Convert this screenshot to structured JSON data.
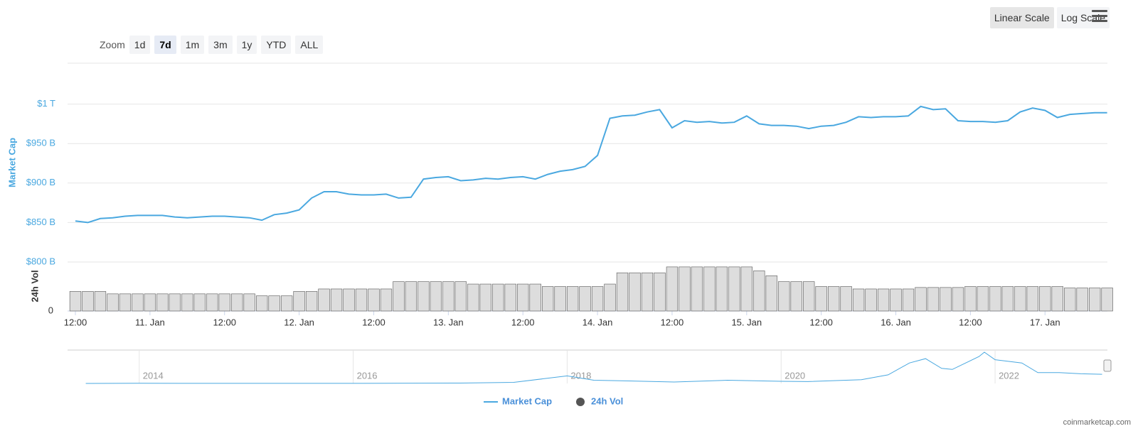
{
  "zoom": {
    "label": "Zoom",
    "buttons": [
      "1d",
      "7d",
      "1m",
      "3m",
      "1y",
      "YTD",
      "ALL"
    ],
    "active": 1
  },
  "scale_buttons": {
    "buttons": [
      "Linear Scale",
      "Log Scale"
    ],
    "active": 0
  },
  "credit": "coinmarketcap.com",
  "chart_data": [
    {
      "type": "line",
      "y_label": "Market Cap",
      "y2_label": "24h Vol",
      "categories": [
        "12:00",
        null,
        null,
        null,
        null,
        null,
        "11. Jan",
        null,
        null,
        null,
        null,
        null,
        "12:00",
        null,
        null,
        null,
        null,
        null,
        "12. Jan",
        null,
        null,
        null,
        null,
        null,
        "12:00",
        null,
        null,
        null,
        null,
        null,
        "13. Jan",
        null,
        null,
        null,
        null,
        null,
        "12:00",
        null,
        null,
        null,
        null,
        null,
        "14. Jan",
        null,
        null,
        null,
        null,
        null,
        "12:00",
        null,
        null,
        null,
        null,
        null,
        "15. Jan",
        null,
        null,
        null,
        null,
        null,
        "12:00",
        null,
        null,
        null,
        null,
        null,
        "16. Jan",
        null,
        null,
        null,
        null,
        null,
        "12:00",
        null,
        null,
        null,
        null,
        null,
        "17. Jan",
        null,
        null,
        null,
        null,
        null
      ],
      "ylim": [
        800,
        1050
      ],
      "yticks": [
        {
          "value": 800,
          "label": "$800 B"
        },
        {
          "value": 850,
          "label": "$850 B"
        },
        {
          "value": 900,
          "label": "$900 B"
        },
        {
          "value": 950,
          "label": "$950 B"
        },
        {
          "value": 1000,
          "label": "$1 T"
        }
      ],
      "y2lim": [
        0,
        100
      ],
      "y2ticks": [
        0
      ],
      "grid": true,
      "series": [
        {
          "name": "Market Cap",
          "color": "#4aa8e0",
          "values": [
            852,
            850,
            855,
            856,
            858,
            859,
            859,
            859,
            857,
            856,
            857,
            858,
            858,
            857,
            856,
            853,
            860,
            862,
            866,
            881,
            889,
            889,
            886,
            885,
            885,
            886,
            881,
            882,
            905,
            907,
            908,
            903,
            904,
            906,
            905,
            907,
            908,
            905,
            911,
            915,
            917,
            921,
            935,
            982,
            985,
            986,
            990,
            993,
            970,
            979,
            977,
            978,
            976,
            977,
            985,
            975,
            973,
            973,
            972,
            969,
            972,
            973,
            977,
            984,
            983,
            984,
            984,
            985,
            997,
            993,
            994,
            979,
            978,
            978,
            977,
            979,
            990,
            995,
            992,
            983,
            987,
            988,
            989,
            989
          ]
        },
        {
          "name": "24h Vol",
          "type": "bar",
          "axis": "y2",
          "color": "#555555",
          "values": [
            40,
            40,
            40,
            35,
            35,
            35,
            35,
            35,
            35,
            35,
            35,
            35,
            35,
            35,
            35,
            31,
            31,
            31,
            40,
            40,
            45,
            45,
            45,
            45,
            45,
            45,
            60,
            60,
            60,
            60,
            60,
            60,
            55,
            55,
            55,
            55,
            55,
            55,
            50,
            50,
            50,
            50,
            50,
            55,
            78,
            78,
            78,
            78,
            90,
            90,
            90,
            90,
            90,
            90,
            90,
            82,
            72,
            60,
            60,
            60,
            50,
            50,
            50,
            45,
            45,
            45,
            45,
            45,
            48,
            48,
            48,
            48,
            50,
            50,
            50,
            50,
            50,
            50,
            50,
            50,
            47,
            47,
            47,
            47
          ]
        }
      ]
    },
    {
      "type": "line",
      "color": "#4aa8e0",
      "x": [
        2013.5,
        2014,
        2015,
        2016,
        2017,
        2017.5,
        2018,
        2018.25,
        2018.5,
        2019,
        2019.5,
        2020,
        2020.25,
        2020.75,
        2021,
        2021.2,
        2021.35,
        2021.5,
        2021.6,
        2021.85,
        2021.9,
        2022,
        2022.25,
        2022.4,
        2022.6,
        2022.8,
        2023
      ],
      "values": [
        1,
        10,
        5,
        7,
        30,
        100,
        700,
        300,
        250,
        130,
        300,
        200,
        170,
        350,
        800,
        1900,
        2300,
        1400,
        1300,
        2500,
        2900,
        2200,
        1900,
        1000,
        1000,
        900,
        850
      ],
      "xlim": [
        2013.33,
        2023.05
      ],
      "xticks": [
        2014,
        2016,
        2018,
        2020,
        2022
      ],
      "ylim": [
        0,
        3100
      ]
    }
  ]
}
